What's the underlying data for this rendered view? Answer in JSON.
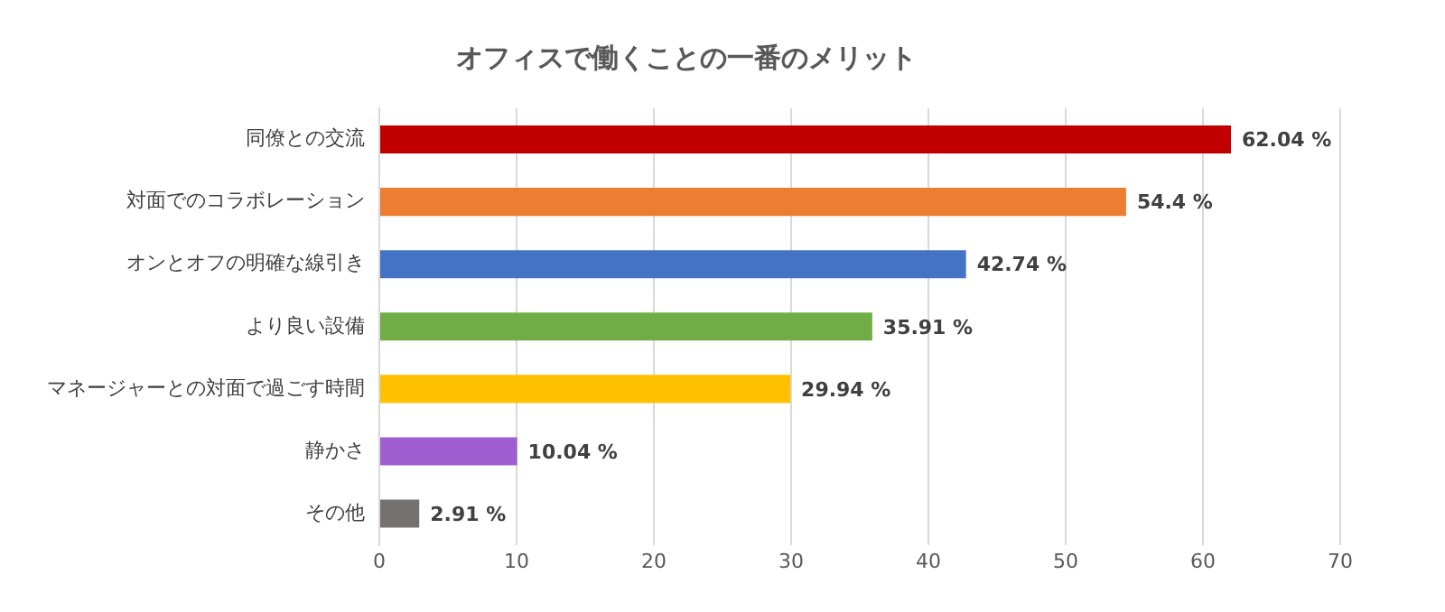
{
  "chart_data": {
    "type": "bar",
    "orientation": "horizontal",
    "title": "オフィスで働くことの一番のメリット",
    "categories": [
      "同僚との交流",
      "対面でのコラボレーション",
      "オンとオフの明確な線引き",
      "より良い設備",
      "マネージャーとの対面で過ごす時間",
      "静かさ",
      "その他"
    ],
    "values": [
      62.04,
      54.4,
      42.74,
      35.91,
      29.94,
      10.04,
      2.91
    ],
    "colors": [
      "#c00000",
      "#ed7d31",
      "#4472c4",
      "#70ad47",
      "#ffc000",
      "#9e5ecf",
      "#767171"
    ],
    "value_labels": [
      "62.04 %",
      "54.4 %",
      "42.74 %",
      "35.91 %",
      "29.94 %",
      "10.04 %",
      "2.91 %"
    ],
    "xlim": [
      0,
      70
    ],
    "xticks": [
      0,
      10,
      20,
      30,
      40,
      50,
      60,
      70
    ],
    "grid": "x",
    "legend": false
  }
}
